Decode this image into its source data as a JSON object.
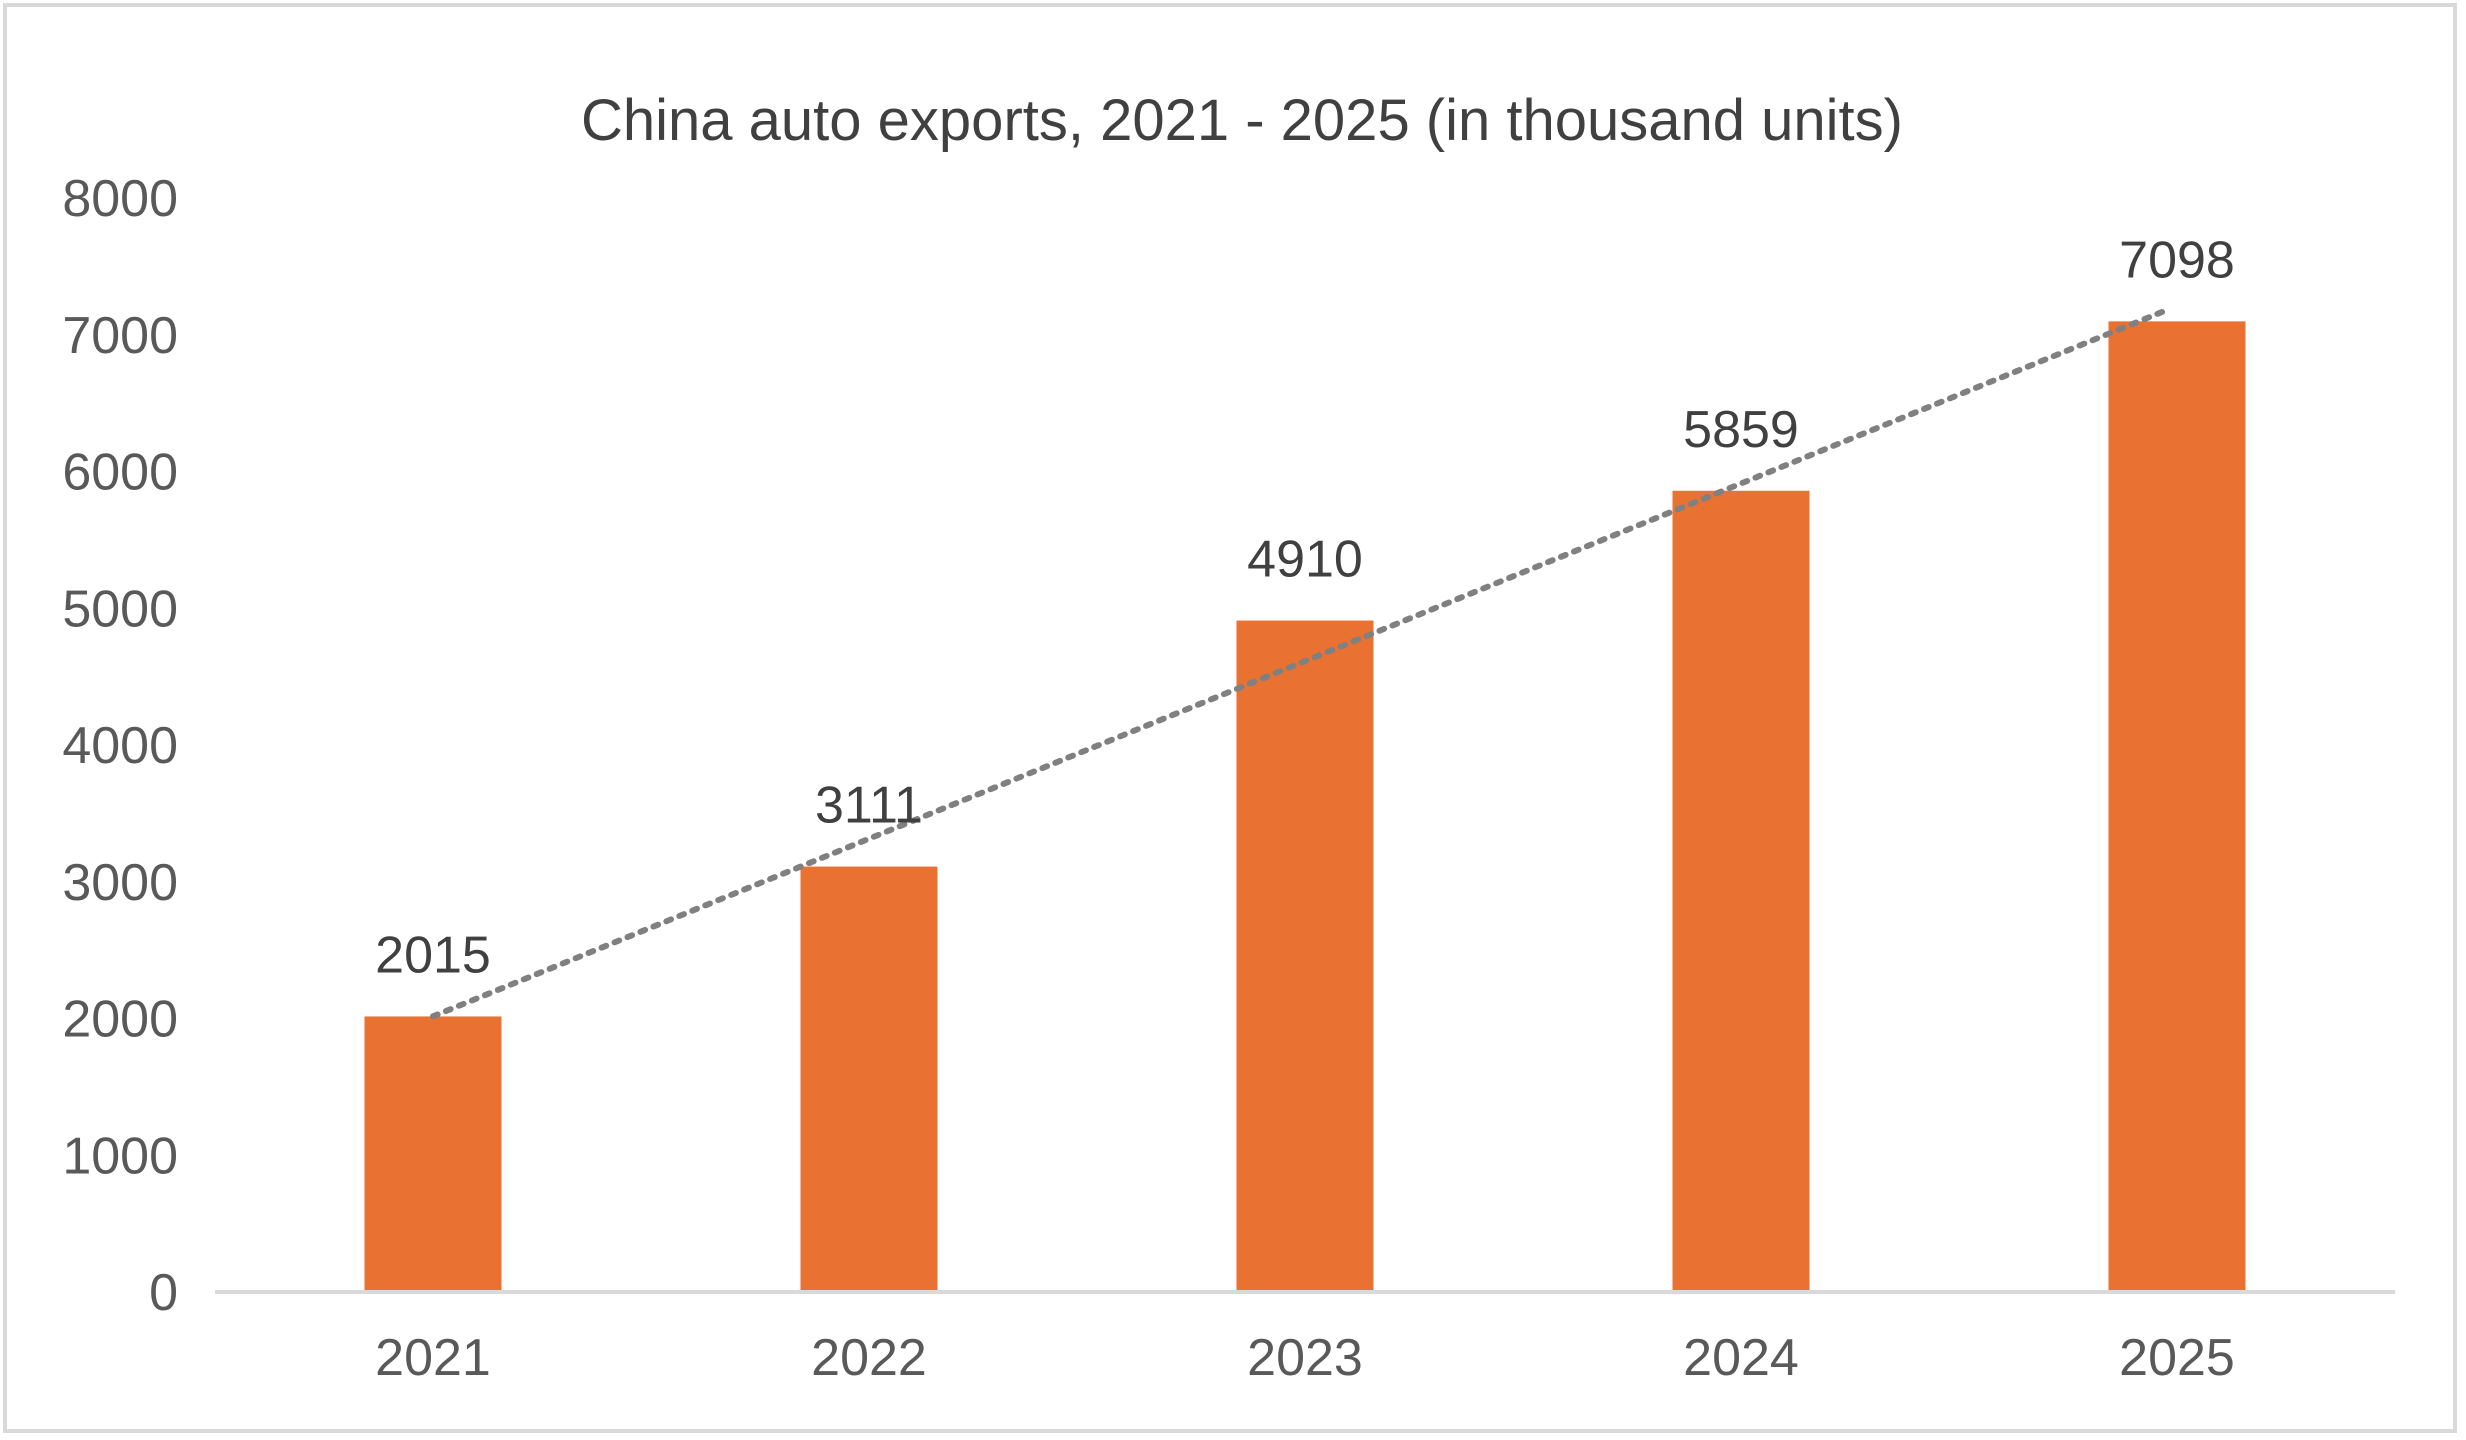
{
  "chart_data": {
    "type": "bar",
    "title": "China auto exports, 2021 - 2025 (in thousand units)",
    "categories": [
      "2021",
      "2022",
      "2023",
      "2024",
      "2025"
    ],
    "values": [
      2015,
      3111,
      4910,
      5859,
      7098
    ],
    "data_labels": [
      "2015",
      "3111",
      "4910",
      "5859",
      "7098"
    ],
    "y_ticks": [
      "0",
      "1000",
      "2000",
      "3000",
      "4000",
      "5000",
      "6000",
      "7000",
      "8000"
    ],
    "ylim": [
      0,
      8000
    ],
    "xlabel": "",
    "ylabel": "",
    "grid": false,
    "legend": "none",
    "trendline": "linear, dotted",
    "colors": {
      "bar": "#E97132",
      "trendline": "#808080",
      "axis": "#d9d9d9"
    }
  }
}
